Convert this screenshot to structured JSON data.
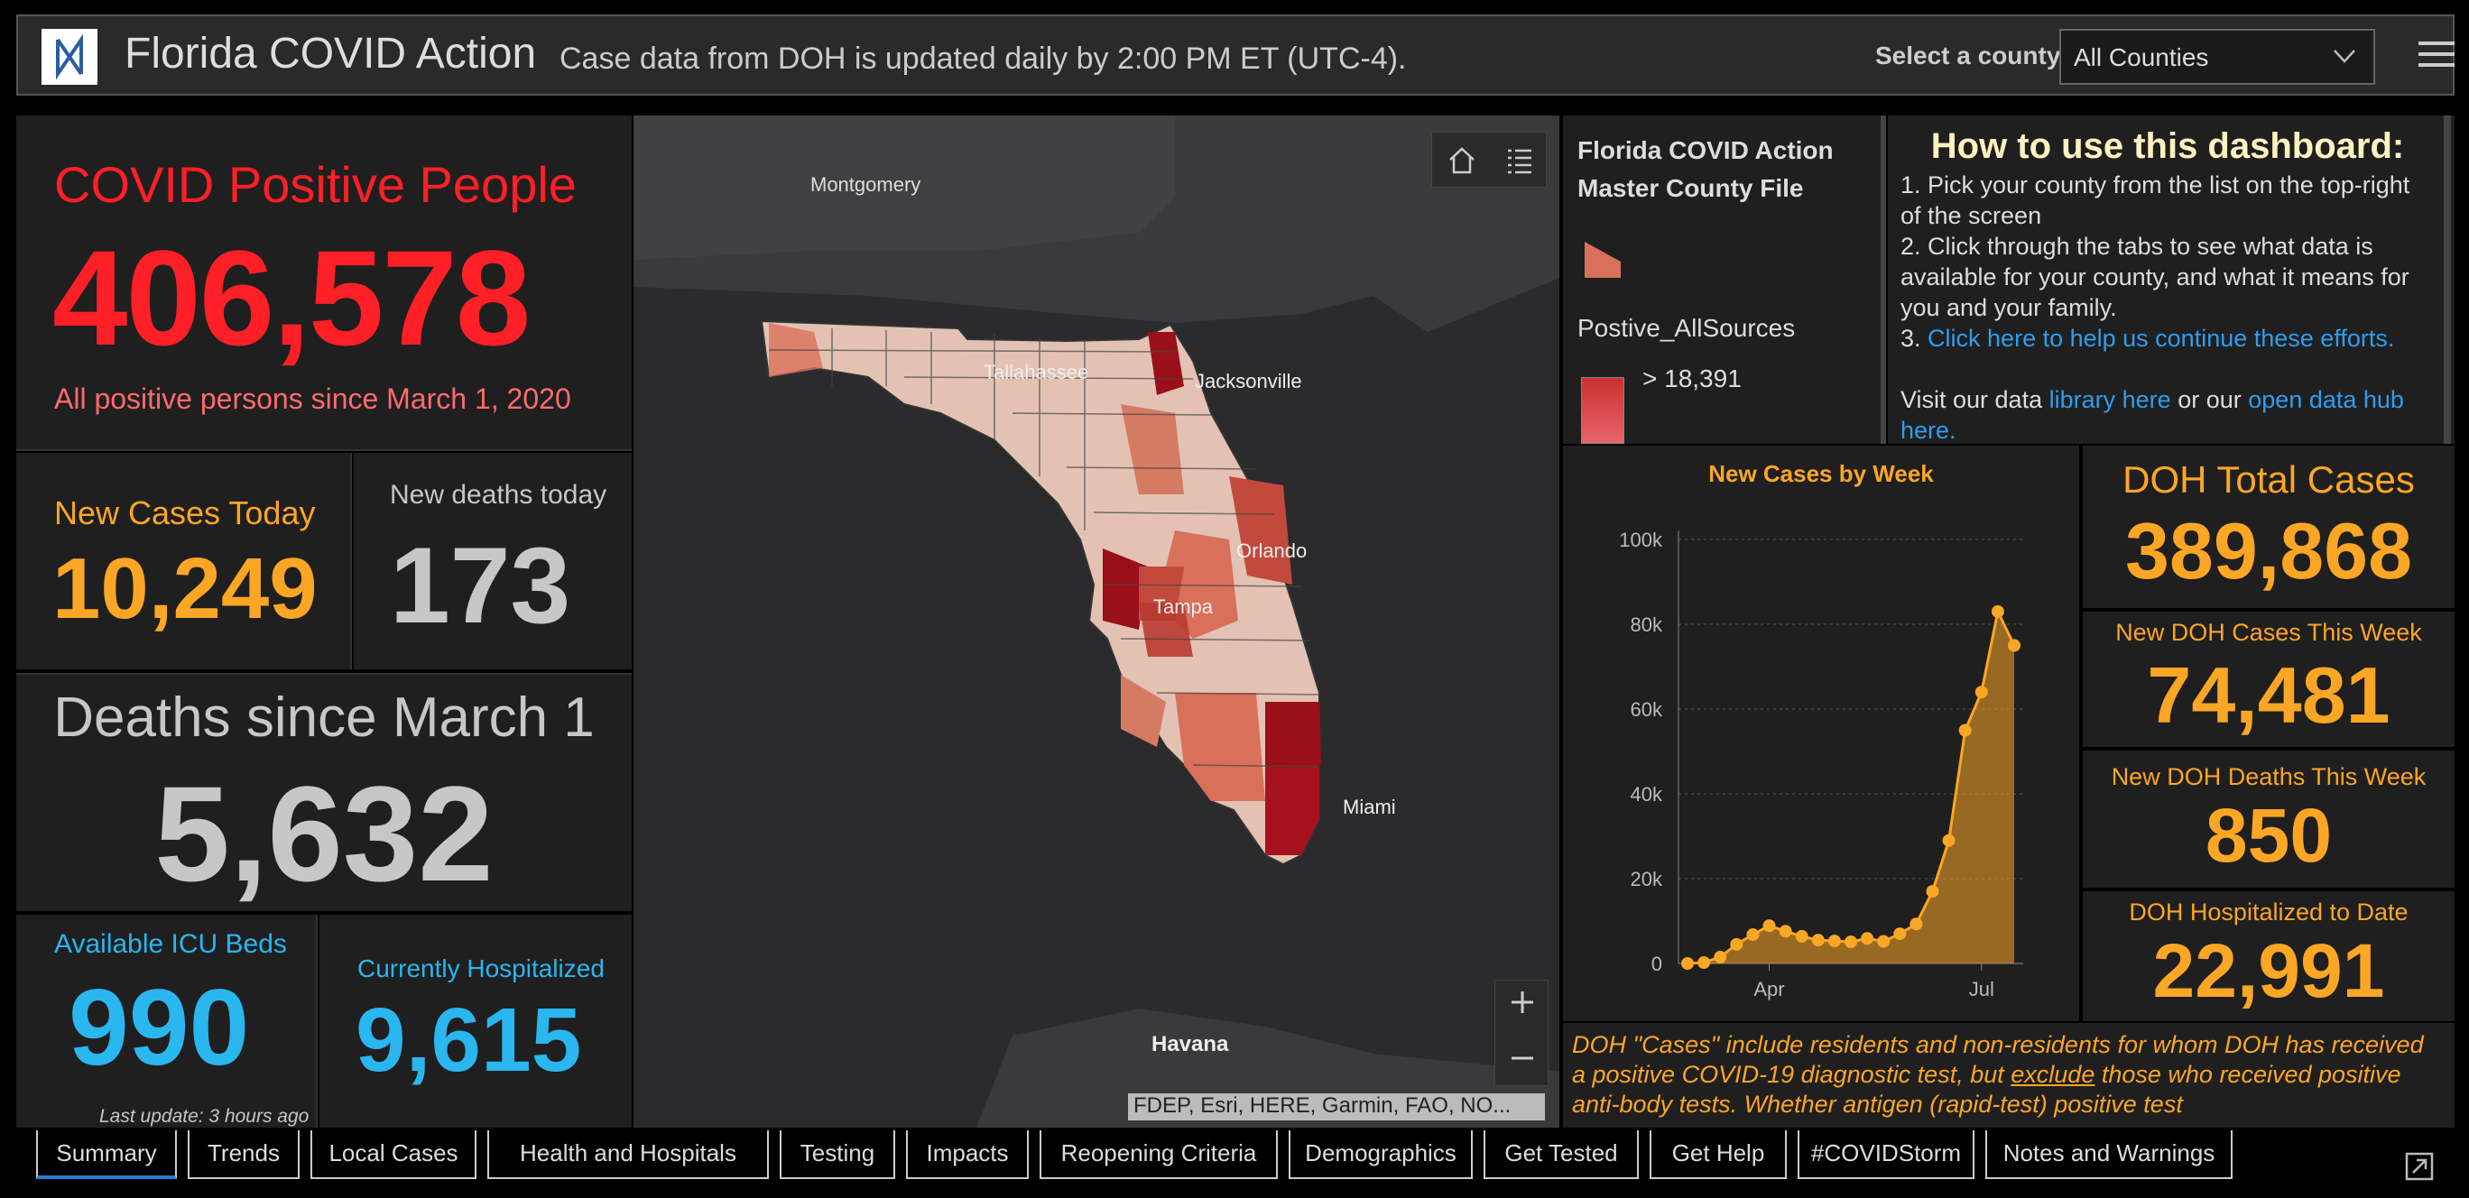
{
  "header": {
    "title": "Florida COVID Action",
    "subtitle": "Case data from DOH is updated daily by 2:00 PM ET (UTC-4).",
    "county_label": "Select a county",
    "county_value": "All Counties"
  },
  "stats": {
    "positive_title": "COVID Positive People",
    "positive_value": "406,578",
    "positive_sub": "All positive persons since March 1, 2020",
    "new_cases_label": "New Cases Today",
    "new_cases_value": "10,249",
    "new_deaths_label": "New deaths today",
    "new_deaths_value": "173",
    "deaths_label": "Deaths since March 1",
    "deaths_value": "5,632",
    "icu_label": "Available ICU Beds",
    "icu_value": "990",
    "hosp_label": "Currently Hospitalized",
    "hosp_value": "9,615",
    "last_update": "Last update: 3 hours ago"
  },
  "map": {
    "cities": [
      "Montgomery",
      "Tallahassee",
      "Jacksonville",
      "Orlando",
      "Tampa",
      "Miami",
      "Havana"
    ],
    "attribution": "FDEP, Esri, HERE, Garmin, FAO, NO..."
  },
  "legend": {
    "title": "Florida COVID Action Master County File",
    "field": "Postive_AllSources",
    "threshold": "> 18,391"
  },
  "howto": {
    "title": "How to use this dashboard:",
    "step1": "1. Pick your county from the list on the top-right of the screen",
    "step2": "2. Click through the tabs to see what data is available for your county, and what it means for you and your family.",
    "step3_prefix": "3.",
    "step3_link": "Click here to help us continue these efforts.",
    "visit_prefix": "Visit our data",
    "visit_link1": "library here",
    "visit_mid": "or our",
    "visit_link2": "open data hub here."
  },
  "doh": {
    "total_label": "DOH Total Cases",
    "total_value": "389,868",
    "week_cases_label": "New DOH Cases This Week",
    "week_cases_value": "74,481",
    "week_deaths_label": "New DOH Deaths This Week",
    "week_deaths_value": "850",
    "hosp_label": "DOH Hospitalized to Date",
    "hosp_value": "22,991"
  },
  "note": {
    "text_a": "DOH \"Cases\" include residents and non-residents for whom DOH has received a positive COVID-19 diagnostic test, but",
    "text_em": "exclude",
    "text_b": "those who received positive anti-body tests. Whether antigen (rapid-test) positive test"
  },
  "tabs": [
    "Summary",
    "Trends",
    "Local Cases",
    "Health and Hospitals",
    "Testing",
    "Impacts",
    "Reopening Criteria",
    "Demographics",
    "Get Tested",
    "Get Help",
    "#COVIDStorm",
    "Notes and Warnings"
  ],
  "colors": {
    "red": "#ff1f26",
    "orange": "#fca625",
    "blue": "#2ab6ef",
    "grey": "#c7c7c7"
  },
  "chart_data": {
    "type": "area",
    "title": "New Cases by Week",
    "x": [
      "Mar 1",
      "Mar 8",
      "Mar 15",
      "Mar 22",
      "Mar 29",
      "Apr 5",
      "Apr 12",
      "Apr 19",
      "Apr 26",
      "May 3",
      "May 10",
      "May 17",
      "May 24",
      "May 31",
      "Jun 7",
      "Jun 14",
      "Jun 21",
      "Jun 28",
      "Jul 5",
      "Jul 12",
      "Jul 19"
    ],
    "values": [
      0,
      200,
      1500,
      4500,
      6800,
      8900,
      7600,
      6400,
      5500,
      5300,
      5100,
      5900,
      5200,
      7000,
      9300,
      17000,
      29000,
      55000,
      64000,
      83000,
      75000
    ],
    "x_tick_labels": [
      "Apr",
      "Jul"
    ],
    "y_ticks": [
      "0",
      "20k",
      "40k",
      "60k",
      "80k",
      "100k"
    ],
    "ylim": [
      0,
      100000
    ]
  }
}
